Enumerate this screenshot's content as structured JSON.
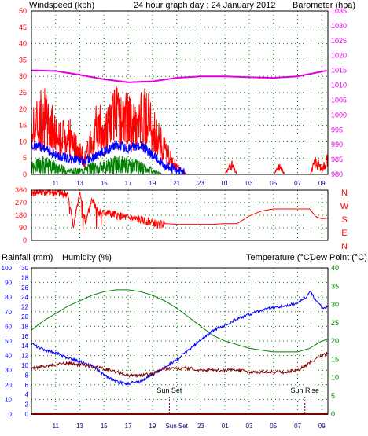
{
  "colors": {
    "wind": "#ff0000",
    "wind_avg": "#0000ff",
    "wind_min": "#008000",
    "barometer": "#e000e0",
    "direction": "#ff0000",
    "humidity": "#0000ff",
    "temperature": "#008000",
    "dewpoint": "#800000",
    "rainfall": "#ff0000",
    "tick_left": "#0000ff",
    "tick_right": "#008000",
    "grid": "#008000",
    "frame": "#000000"
  },
  "header": {
    "windspeed_label": "Windspeed (kph)",
    "title": "24 hour graph day : 24 January 2012",
    "barometer_label": "Barometer (hpa)"
  },
  "lower_header": {
    "rainfall_label": "Rainfall (mm)",
    "humidity_label": "Humidity (%)",
    "temperature_label": "Temperature (°C)",
    "dewpoint_label": "Dew Point (°C)"
  },
  "time_axis": {
    "tick_labels": [
      "11",
      "13",
      "15",
      "17",
      "19",
      "21",
      "23",
      "01",
      "03",
      "05",
      "07",
      "09"
    ],
    "bottom_tick_labels": [
      "11",
      "13",
      "15",
      "17",
      "19",
      "Sun Set",
      "23",
      "01",
      "03",
      "05",
      "07",
      "09"
    ]
  },
  "annotations": {
    "sun_set": "Sun Set",
    "sun_rise": "Sun Rise"
  },
  "chart_data": [
    {
      "type": "line",
      "name": "windspeed-barometer",
      "x_hours": [
        9,
        33.5
      ],
      "wind_ylim": [
        0,
        50
      ],
      "wind_ticks": [
        "0",
        "5",
        "10",
        "15",
        "20",
        "25",
        "30",
        "35",
        "40",
        "45",
        "50"
      ],
      "baro_ylim": [
        980,
        1035
      ],
      "baro_ticks": [
        "980",
        "985",
        "990",
        "995",
        "1000",
        "1005",
        "1010",
        "1015",
        "1020",
        "1025",
        "1030",
        "1035"
      ],
      "series": [
        {
          "name": "Windspeed (kph)",
          "x": [
            9,
            9.5,
            10,
            10.5,
            11,
            11.5,
            12,
            12.5,
            13,
            13.5,
            14,
            14.5,
            15,
            15.5,
            16,
            16.5,
            17,
            17.5,
            18,
            18.5,
            19,
            19.5,
            20,
            20.5,
            21,
            21.5,
            22,
            22.5,
            23,
            24,
            25,
            25.5,
            26,
            27,
            28,
            29,
            29.5,
            30,
            31,
            32,
            32.5,
            33,
            33.5
          ],
          "values": [
            17,
            20,
            22,
            19,
            15,
            13,
            16,
            11,
            8,
            6,
            15,
            18,
            16,
            19,
            22,
            20,
            21,
            18,
            20,
            22,
            17,
            14,
            9,
            6,
            3,
            1,
            0,
            0,
            0,
            0,
            0,
            4,
            0,
            0,
            0,
            0,
            3,
            0,
            0,
            0,
            5,
            2,
            6
          ]
        },
        {
          "name": "Wind average",
          "x": [
            9,
            10,
            11,
            12,
            13,
            14,
            15,
            16,
            17,
            18,
            19,
            20,
            21,
            22,
            23,
            33.5
          ],
          "values": [
            9,
            8,
            6,
            5,
            4,
            5,
            7,
            9,
            8,
            9,
            6,
            3,
            1,
            0,
            0,
            0
          ]
        },
        {
          "name": "Wind minimum",
          "x": [
            9,
            10,
            11,
            12,
            13,
            14,
            15,
            16,
            17,
            18,
            19,
            20,
            21,
            22,
            33.5
          ],
          "values": [
            2,
            3,
            2,
            1,
            1,
            2,
            2,
            3,
            3,
            2,
            1,
            0,
            0,
            0,
            0
          ]
        },
        {
          "name": "Barometer (hpa)",
          "x": [
            9,
            11,
            13,
            15,
            17,
            19,
            21,
            23,
            25,
            27,
            29,
            31,
            33.5
          ],
          "values": [
            1015,
            1014.8,
            1013.5,
            1012,
            1011,
            1011.3,
            1012.5,
            1013,
            1013,
            1012.7,
            1012.5,
            1013,
            1015
          ]
        }
      ]
    },
    {
      "type": "scatter",
      "name": "wind-direction",
      "y_ticks": [
        "0",
        "90",
        "180",
        "270",
        "360"
      ],
      "compass_labels": [
        "N",
        "W",
        "S",
        "E",
        "N"
      ],
      "ylim": [
        0,
        360
      ],
      "series": [
        {
          "name": "Wind direction",
          "x": [
            9,
            10,
            11,
            12,
            12.5,
            13,
            13.5,
            14,
            14.5,
            15,
            16,
            17,
            18,
            19,
            19.5,
            20,
            21,
            22,
            23,
            24,
            25,
            26,
            27,
            28,
            29,
            30,
            31,
            32,
            32.5,
            33,
            33.5
          ],
          "values": [
            340,
            350,
            340,
            330,
            100,
            350,
            120,
            300,
            200,
            200,
            180,
            160,
            145,
            130,
            110,
            120,
            115,
            115,
            115,
            115,
            120,
            120,
            175,
            210,
            225,
            225,
            225,
            225,
            170,
            155,
            160
          ]
        }
      ]
    },
    {
      "type": "line",
      "name": "temperature-humidity",
      "humidity_ylim": [
        0,
        100
      ],
      "humidity_ticks": [
        "0",
        "10",
        "20",
        "30",
        "40",
        "50",
        "60",
        "70",
        "80",
        "90",
        "100"
      ],
      "rain_ylim": [
        0,
        30
      ],
      "rain_ticks": [
        "0",
        "2",
        "4",
        "6",
        "8",
        "10",
        "12",
        "14",
        "16",
        "18",
        "20",
        "22",
        "24",
        "26",
        "28",
        "30"
      ],
      "temp_ylim": [
        0,
        40
      ],
      "temp_ticks": [
        "0",
        "5",
        "10",
        "15",
        "20",
        "25",
        "30",
        "35",
        "40"
      ],
      "series": [
        {
          "name": "Humidity (%)",
          "x": [
            9,
            10,
            11,
            12,
            13,
            14,
            15,
            16,
            17,
            18,
            19,
            20,
            21,
            22,
            23,
            24,
            25,
            26,
            27,
            28,
            29,
            30,
            31,
            31.7,
            32,
            32.5,
            33,
            33.5
          ],
          "values": [
            48,
            44,
            42,
            38,
            36,
            33,
            27,
            22,
            21,
            22,
            27,
            32,
            37,
            44,
            51,
            57,
            61,
            65,
            68,
            71,
            73,
            74,
            76,
            80,
            84,
            78,
            73,
            73
          ]
        },
        {
          "name": "Temperature (°C)",
          "x": [
            9,
            10,
            11,
            12,
            13,
            14,
            15,
            16,
            17,
            18,
            19,
            20,
            21,
            22,
            23,
            24,
            25,
            26,
            27,
            28,
            29,
            30,
            31,
            32,
            32.5,
            33,
            33.5
          ],
          "values": [
            23,
            25.5,
            27.5,
            29.5,
            31,
            32.5,
            33.5,
            34,
            34,
            33.5,
            32.5,
            31,
            29,
            26.5,
            24,
            21.5,
            20,
            19,
            18,
            17.5,
            17,
            17,
            17,
            18,
            19,
            20,
            20.5
          ]
        },
        {
          "name": "Dew Point (°C)",
          "x": [
            9,
            10,
            11,
            12,
            13,
            14,
            15,
            16,
            17,
            18,
            19,
            20,
            21,
            22,
            23,
            24,
            25,
            26,
            27,
            28,
            29,
            30,
            31,
            32,
            32.5,
            33,
            33.5
          ],
          "values": [
            12.5,
            13,
            13.5,
            14,
            13.5,
            13,
            12.5,
            11.5,
            10.5,
            10.5,
            11,
            12.5,
            12.5,
            12.5,
            12,
            12,
            12,
            12,
            11.5,
            11.5,
            11.5,
            11.5,
            12,
            14,
            15,
            16,
            16.5
          ]
        },
        {
          "name": "Rainfall (mm)",
          "x": [
            9,
            33.5
          ],
          "values": [
            0,
            0
          ]
        }
      ]
    }
  ]
}
